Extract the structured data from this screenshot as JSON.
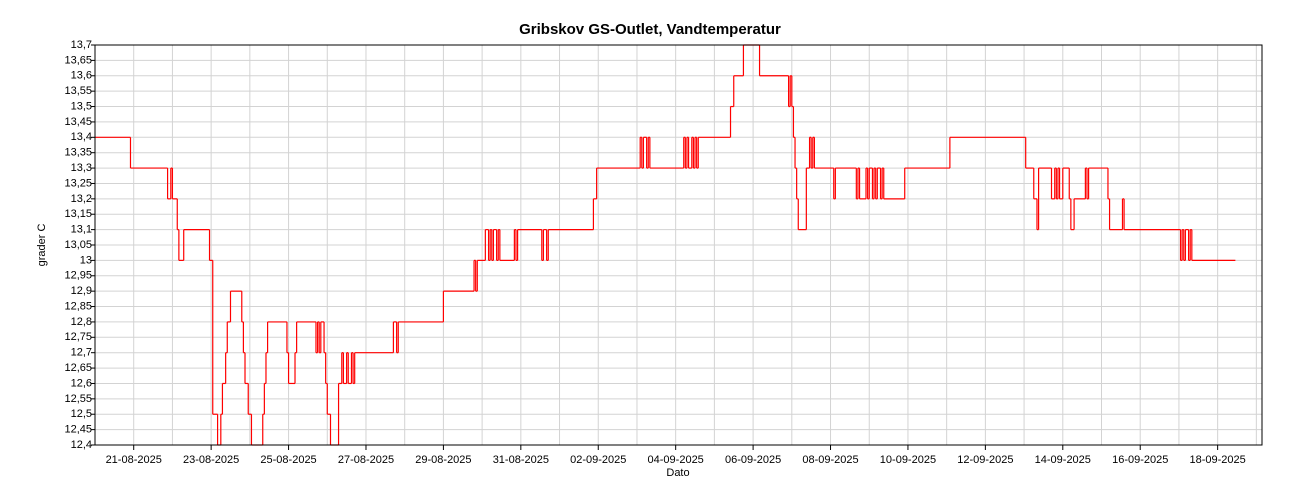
{
  "chart_data": {
    "type": "line",
    "title": "Gribskov GS-Outlet, Vandtemperatur",
    "xlabel": "Dato",
    "ylabel": "grader C",
    "color": "#ff0000",
    "grid": true,
    "line_style": "step",
    "xlim": [
      "20-08-2025 00:00",
      "19-09-2025 03:30"
    ],
    "xticks": [
      "21-08-2025",
      "23-08-2025",
      "25-08-2025",
      "27-08-2025",
      "29-08-2025",
      "31-08-2025",
      "02-09-2025",
      "04-09-2025",
      "06-09-2025",
      "08-09-2025",
      "10-09-2025",
      "12-09-2025",
      "14-09-2025",
      "16-09-2025",
      "18-09-2025"
    ],
    "ylim": [
      12.4,
      13.7
    ],
    "yticks": [
      {
        "value": 12.4,
        "label": "12,4"
      },
      {
        "value": 12.45,
        "label": "12,45"
      },
      {
        "value": 12.5,
        "label": "12,5"
      },
      {
        "value": 12.55,
        "label": "12,55"
      },
      {
        "value": 12.6,
        "label": "12,6"
      },
      {
        "value": 12.65,
        "label": "12,65"
      },
      {
        "value": 12.7,
        "label": "12,7"
      },
      {
        "value": 12.75,
        "label": "12,75"
      },
      {
        "value": 12.8,
        "label": "12,8"
      },
      {
        "value": 12.85,
        "label": "12,85"
      },
      {
        "value": 12.9,
        "label": "12,9"
      },
      {
        "value": 12.95,
        "label": "12,95"
      },
      13,
      {
        "value": 13.05,
        "label": "13,05"
      },
      {
        "value": 13.1,
        "label": "13,1"
      },
      {
        "value": 13.15,
        "label": "13,15"
      },
      {
        "value": 13.2,
        "label": "13,2"
      },
      {
        "value": 13.25,
        "label": "13,25"
      },
      {
        "value": 13.3,
        "label": "13,3"
      },
      {
        "value": 13.35,
        "label": "13,35"
      },
      {
        "value": 13.4,
        "label": "13,4"
      },
      {
        "value": 13.45,
        "label": "13,45"
      },
      {
        "value": 13.5,
        "label": "13,5"
      },
      {
        "value": 13.55,
        "label": "13,55"
      },
      {
        "value": 13.6,
        "label": "13,6"
      },
      {
        "value": 13.65,
        "label": "13,65"
      },
      {
        "value": 13.7,
        "label": "13,7"
      }
    ],
    "x": [
      "20-08-2025 00:00",
      "20-08-2025 22:00",
      "21-08-2025 21:00",
      "21-08-2025 23:00",
      "22-08-2025 00:00",
      "22-08-2025 03:00",
      "22-08-2025 04:00",
      "22-08-2025 07:00",
      "22-08-2025 23:00",
      "23-08-2025 01:00",
      "23-08-2025 04:00",
      "23-08-2025 06:00",
      "23-08-2025 07:00",
      "23-08-2025 09:00",
      "23-08-2025 10:00",
      "23-08-2025 12:00",
      "23-08-2025 19:00",
      "23-08-2025 20:00",
      "23-08-2025 21:00",
      "23-08-2025 23:00",
      "24-08-2025 01:00",
      "24-08-2025 08:00",
      "24-08-2025 09:00",
      "24-08-2025 10:00",
      "24-08-2025 11:00",
      "24-08-2025 23:00",
      "25-08-2025 00:00",
      "25-08-2025 04:00",
      "25-08-2025 05:00",
      "25-08-2025 17:00",
      "25-08-2025 18:00",
      "25-08-2025 19:00",
      "25-08-2025 20:00",
      "25-08-2025 22:00",
      "25-08-2025 23:00",
      "26-08-2025 00:00",
      "26-08-2025 02:00",
      "26-08-2025 07:00",
      "26-08-2025 09:00",
      "26-08-2025 10:00",
      "26-08-2025 12:00",
      "26-08-2025 13:00",
      "26-08-2025 15:00",
      "26-08-2025 16:00",
      "26-08-2025 17:00",
      "27-08-2025 17:00",
      "27-08-2025 19:00",
      "27-08-2025 20:00",
      "29-08-2025 00:00",
      "29-08-2025 19:00",
      "29-08-2025 20:00",
      "29-08-2025 21:00",
      "30-08-2025 02:00",
      "30-08-2025 04:00",
      "30-08-2025 05:00",
      "30-08-2025 06:00",
      "30-08-2025 07:00",
      "30-08-2025 09:00",
      "30-08-2025 10:00",
      "30-08-2025 11:00",
      "30-08-2025 20:00",
      "30-08-2025 21:00",
      "30-08-2025 22:00",
      "31-08-2025 13:00",
      "31-08-2025 14:00",
      "31-08-2025 16:00",
      "31-08-2025 17:00",
      "01-09-2025 21:00",
      "01-09-2025 23:00",
      "03-09-2025 02:00",
      "03-09-2025 03:00",
      "03-09-2025 04:00",
      "03-09-2025 06:00",
      "03-09-2025 07:00",
      "03-09-2025 08:00",
      "04-09-2025 05:00",
      "04-09-2025 06:00",
      "04-09-2025 07:00",
      "04-09-2025 08:00",
      "04-09-2025 10:00",
      "04-09-2025 11:00",
      "04-09-2025 12:00",
      "04-09-2025 13:00",
      "04-09-2025 14:00",
      "05-09-2025 10:00",
      "05-09-2025 12:00",
      "05-09-2025 18:00",
      "06-09-2025 04:00",
      "06-09-2025 22:00",
      "06-09-2025 23:00",
      "07-09-2025 00:00",
      "07-09-2025 01:00",
      "07-09-2025 02:00",
      "07-09-2025 03:00",
      "07-09-2025 04:00",
      "07-09-2025 09:00",
      "07-09-2025 11:00",
      "07-09-2025 12:00",
      "07-09-2025 13:00",
      "07-09-2025 14:00",
      "08-09-2025 02:00",
      "08-09-2025 03:00",
      "08-09-2025 16:00",
      "08-09-2025 17:00",
      "08-09-2025 18:00",
      "08-09-2025 22:00",
      "08-09-2025 23:00",
      "09-09-2025 00:00",
      "09-09-2025 02:00",
      "09-09-2025 03:00",
      "09-09-2025 04:00",
      "09-09-2025 05:00",
      "09-09-2025 07:00",
      "09-09-2025 08:00",
      "09-09-2025 09:00",
      "09-09-2025 22:00",
      "11-09-2025 02:00",
      "13-09-2025 01:00",
      "13-09-2025 06:00",
      "13-09-2025 08:00",
      "13-09-2025 09:00",
      "13-09-2025 17:00",
      "13-09-2025 19:00",
      "13-09-2025 20:00",
      "13-09-2025 21:00",
      "13-09-2025 22:00",
      "14-09-2025 00:00",
      "14-09-2025 04:00",
      "14-09-2025 05:00",
      "14-09-2025 07:00",
      "14-09-2025 14:00",
      "14-09-2025 15:00",
      "14-09-2025 16:00",
      "15-09-2025 04:00",
      "15-09-2025 05:00",
      "15-09-2025 13:00",
      "15-09-2025 14:00",
      "17-09-2025 01:00",
      "17-09-2025 02:00",
      "17-09-2025 03:00",
      "17-09-2025 04:00",
      "17-09-2025 06:00",
      "17-09-2025 07:00",
      "17-09-2025 08:00",
      "18-09-2025 11:00"
    ],
    "values": [
      13.4,
      13.3,
      13.2,
      13.3,
      13.2,
      13.1,
      13.0,
      13.1,
      13.0,
      12.5,
      12.4,
      12.5,
      12.6,
      12.7,
      12.8,
      12.9,
      12.8,
      12.7,
      12.6,
      12.5,
      12.4,
      12.5,
      12.6,
      12.7,
      12.8,
      12.7,
      12.6,
      12.7,
      12.8,
      12.7,
      12.8,
      12.7,
      12.8,
      12.7,
      12.6,
      12.5,
      12.4,
      12.6,
      12.7,
      12.6,
      12.7,
      12.6,
      12.7,
      12.6,
      12.7,
      12.8,
      12.7,
      12.8,
      12.9,
      13.0,
      12.9,
      13.0,
      13.1,
      13.0,
      13.1,
      13.0,
      13.1,
      13.0,
      13.1,
      13.0,
      13.1,
      13.0,
      13.1,
      13.0,
      13.1,
      13.0,
      13.1,
      13.2,
      13.3,
      13.4,
      13.3,
      13.4,
      13.3,
      13.4,
      13.3,
      13.4,
      13.3,
      13.4,
      13.3,
      13.4,
      13.3,
      13.4,
      13.3,
      13.4,
      13.5,
      13.6,
      13.7,
      13.6,
      13.5,
      13.6,
      13.5,
      13.4,
      13.3,
      13.2,
      13.1,
      13.3,
      13.4,
      13.3,
      13.4,
      13.3,
      13.2,
      13.3,
      13.2,
      13.3,
      13.2,
      13.3,
      13.2,
      13.3,
      13.2,
      13.3,
      13.2,
      13.3,
      13.2,
      13.3,
      13.2,
      13.3,
      13.4,
      13.3,
      13.2,
      13.1,
      13.3,
      13.2,
      13.3,
      13.2,
      13.3,
      13.2,
      13.3,
      13.2,
      13.1,
      13.2,
      13.3,
      13.2,
      13.3,
      13.2,
      13.1,
      13.2,
      13.1,
      13.0,
      13.1,
      13.0,
      13.1,
      13.0,
      13.1,
      13.0,
      13.0
    ]
  }
}
